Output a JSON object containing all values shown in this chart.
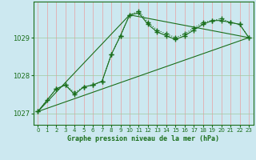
{
  "title": "Graphe pression niveau de la mer (hPa)",
  "bg_color": "#cce8f0",
  "grid_color_v": "#e8a0a0",
  "grid_color_h": "#a0c8a0",
  "line_color": "#1a6e1a",
  "xlim": [
    -0.5,
    23.5
  ],
  "ylim": [
    1026.7,
    1029.95
  ],
  "yticks": [
    1027,
    1028,
    1029
  ],
  "xticks": [
    0,
    1,
    2,
    3,
    4,
    5,
    6,
    7,
    8,
    9,
    10,
    11,
    12,
    13,
    14,
    15,
    16,
    17,
    18,
    19,
    20,
    21,
    22,
    23
  ],
  "series": [
    {
      "x": [
        0,
        1,
        2,
        3,
        4,
        5,
        6,
        7,
        8,
        9,
        10,
        11,
        12,
        13,
        14,
        15,
        16,
        17,
        18,
        19,
        20,
        21,
        22,
        23
      ],
      "y": [
        1027.05,
        1027.35,
        1027.65,
        1027.75,
        1027.55,
        1027.7,
        1027.75,
        1027.85,
        1028.55,
        1029.05,
        1029.6,
        1029.7,
        1029.4,
        1029.2,
        1029.1,
        1029.0,
        1029.1,
        1029.25,
        1029.4,
        1029.45,
        1029.5,
        1029.4,
        1029.35,
        1029.0
      ],
      "marker": "+",
      "markersize": 4,
      "linewidth": 0.8,
      "linestyle": "dotted"
    },
    {
      "x": [
        0,
        2,
        3,
        4,
        5,
        6,
        7,
        8,
        9,
        10,
        11,
        12,
        13,
        14,
        15,
        16,
        17,
        18,
        19,
        20,
        21,
        22,
        23
      ],
      "y": [
        1027.05,
        1027.65,
        1027.75,
        1027.5,
        1027.7,
        1027.75,
        1027.85,
        1028.55,
        1029.05,
        1029.6,
        1029.65,
        1029.35,
        1029.15,
        1029.05,
        1028.95,
        1029.05,
        1029.2,
        1029.35,
        1029.45,
        1029.45,
        1029.4,
        1029.35,
        1029.0
      ],
      "marker": "+",
      "markersize": 4,
      "linewidth": 0.8,
      "linestyle": "solid"
    },
    {
      "x": [
        0,
        23
      ],
      "y": [
        1027.05,
        1029.0
      ],
      "marker": null,
      "markersize": 0,
      "linewidth": 0.8,
      "linestyle": "solid"
    },
    {
      "x": [
        0,
        10,
        23
      ],
      "y": [
        1027.05,
        1029.6,
        1029.0
      ],
      "marker": null,
      "markersize": 0,
      "linewidth": 0.8,
      "linestyle": "solid"
    }
  ]
}
